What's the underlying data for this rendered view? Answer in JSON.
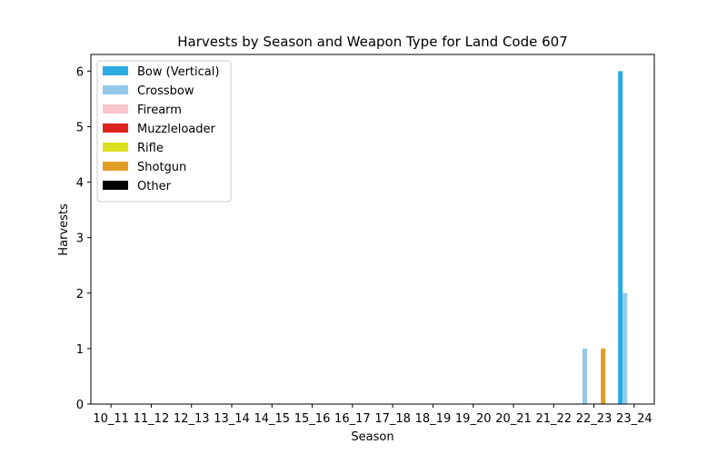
{
  "chart_data": {
    "type": "bar",
    "title": "Harvests by Season and Weapon Type for Land Code 607",
    "xlabel": "Season",
    "ylabel": "Harvests",
    "ylim": [
      0,
      6.3
    ],
    "yticks": [
      0,
      1,
      2,
      3,
      4,
      5,
      6
    ],
    "grid": false,
    "legend_position": "top-left",
    "categories": [
      "10_11",
      "11_12",
      "12_13",
      "13_14",
      "14_15",
      "15_16",
      "16_17",
      "17_18",
      "18_19",
      "19_20",
      "20_21",
      "21_22",
      "22_23",
      "23_24"
    ],
    "series": [
      {
        "name": "Bow (Vertical)",
        "color": "#29abe0",
        "values": [
          0,
          0,
          0,
          0,
          0,
          0,
          0,
          0,
          0,
          0,
          0,
          0,
          0,
          6
        ]
      },
      {
        "name": "Crossbow",
        "color": "#94c9ec",
        "values": [
          0,
          0,
          0,
          0,
          0,
          0,
          0,
          0,
          0,
          0,
          0,
          0,
          1,
          2
        ]
      },
      {
        "name": "Firearm",
        "color": "#f8c5cc",
        "values": [
          0,
          0,
          0,
          0,
          0,
          0,
          0,
          0,
          0,
          0,
          0,
          0,
          0,
          0
        ]
      },
      {
        "name": "Muzzleloader",
        "color": "#dd2222",
        "values": [
          0,
          0,
          0,
          0,
          0,
          0,
          0,
          0,
          0,
          0,
          0,
          0,
          0,
          0
        ]
      },
      {
        "name": "Rifle",
        "color": "#dede22",
        "values": [
          0,
          0,
          0,
          0,
          0,
          0,
          0,
          0,
          0,
          0,
          0,
          0,
          0,
          0
        ]
      },
      {
        "name": "Shotgun",
        "color": "#e09e27",
        "values": [
          0,
          0,
          0,
          0,
          0,
          0,
          0,
          0,
          0,
          0,
          0,
          0,
          1,
          0
        ]
      },
      {
        "name": "Other",
        "color": "#000000",
        "values": [
          0,
          0,
          0,
          0,
          0,
          0,
          0,
          0,
          0,
          0,
          0,
          0,
          0,
          0
        ]
      }
    ]
  }
}
